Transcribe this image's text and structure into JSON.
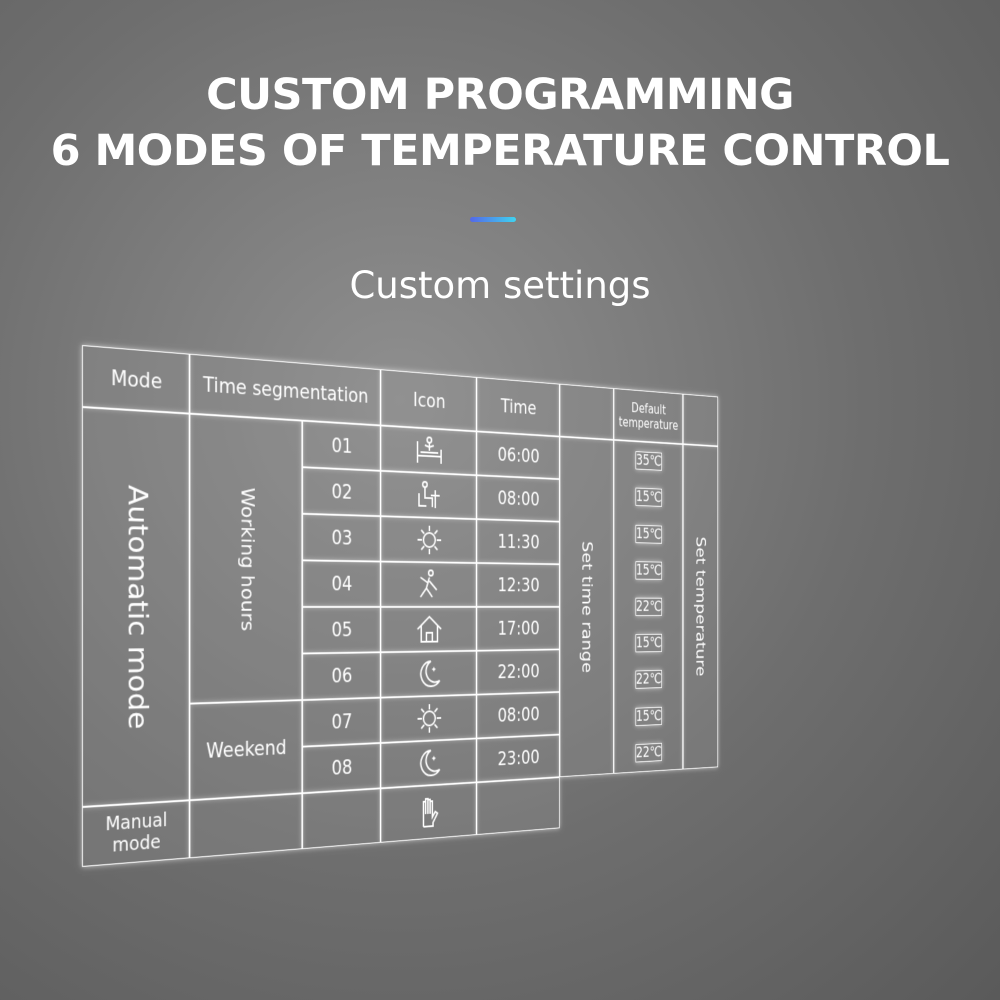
{
  "header": {
    "title": [
      "CUSTOM PROGRAMMING",
      "6 MODES OF TEMPERATURE CONTROL"
    ],
    "subtitle": "Custom settings"
  },
  "table": {
    "headers": {
      "mode": "Mode",
      "segmentation": "Time segmentation",
      "icon": "Icon",
      "time": "Time",
      "temperature": "Default temperature"
    },
    "automatic": "Automatic mode",
    "manual": "Manual mode",
    "groups": [
      "Working hours",
      "Weekend"
    ],
    "segments": [
      "01",
      "02",
      "03",
      "04",
      "05",
      "06",
      "07",
      "08"
    ],
    "times": [
      "06:00",
      "08:00",
      "11:30",
      "12:30",
      "17:00",
      "22:00",
      "08:00",
      "23:00"
    ],
    "time_note": "Set time range",
    "temperatures": [
      "35℃",
      "15℃",
      "15℃",
      "15℃",
      "22℃",
      "15℃",
      "22℃",
      "15℃",
      "22℃"
    ],
    "temperature_note": "Set temperature"
  }
}
